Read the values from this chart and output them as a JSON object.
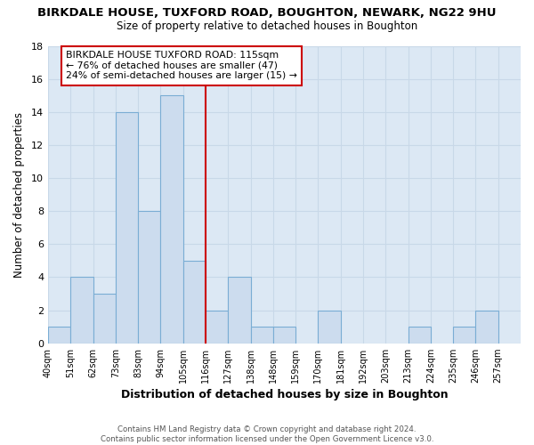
{
  "title": "BIRKDALE HOUSE, TUXFORD ROAD, BOUGHTON, NEWARK, NG22 9HU",
  "subtitle": "Size of property relative to detached houses in Boughton",
  "xlabel": "Distribution of detached houses by size in Boughton",
  "ylabel": "Number of detached properties",
  "footer_line1": "Contains HM Land Registry data © Crown copyright and database right 2024.",
  "footer_line2": "Contains public sector information licensed under the Open Government Licence v3.0.",
  "bin_labels": [
    "40sqm",
    "51sqm",
    "62sqm",
    "73sqm",
    "83sqm",
    "94sqm",
    "105sqm",
    "116sqm",
    "127sqm",
    "138sqm",
    "148sqm",
    "159sqm",
    "170sqm",
    "181sqm",
    "192sqm",
    "203sqm",
    "213sqm",
    "224sqm",
    "235sqm",
    "246sqm",
    "257sqm"
  ],
  "bar_values": [
    1,
    4,
    3,
    14,
    8,
    15,
    5,
    2,
    4,
    1,
    1,
    0,
    2,
    0,
    0,
    0,
    1,
    0,
    1,
    2,
    0
  ],
  "bar_color": "#ccdcee",
  "bar_edge_color": "#7aadd4",
  "vline_x_index": 7,
  "vline_color": "#cc0000",
  "annotation_title": "BIRKDALE HOUSE TUXFORD ROAD: 115sqm",
  "annotation_line1": "← 76% of detached houses are smaller (47)",
  "annotation_line2": "24% of semi-detached houses are larger (15) →",
  "annotation_box_color": "#cc0000",
  "annotation_fill": "#ffffff",
  "ylim": [
    0,
    18
  ],
  "yticks": [
    0,
    2,
    4,
    6,
    8,
    10,
    12,
    14,
    16,
    18
  ],
  "grid_color": "#c8d8e8",
  "plot_bg_color": "#dce8f4",
  "fig_bg_color": "#ffffff"
}
